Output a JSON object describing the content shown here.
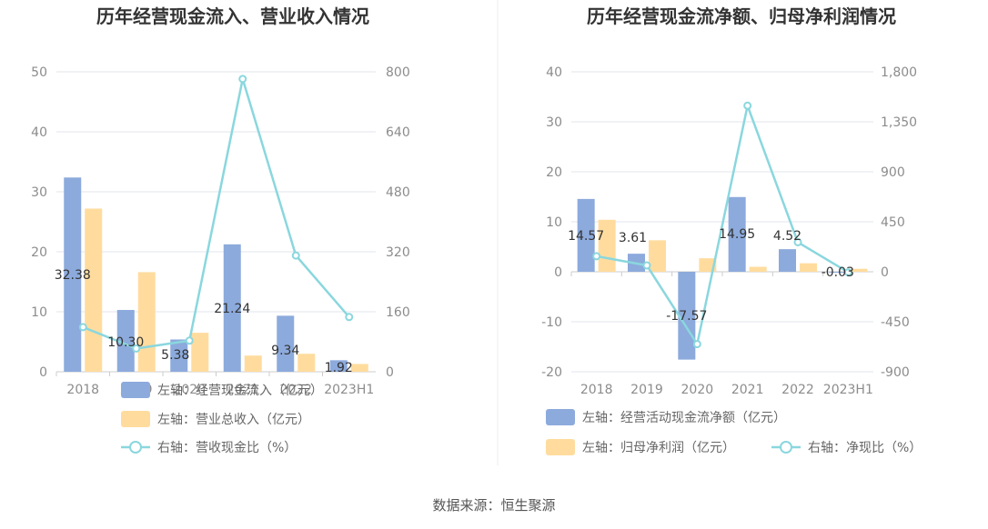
{
  "colors": {
    "bar_primary": "#8caadc",
    "bar_secondary": "#ffdc9e",
    "line": "#8ad7de",
    "grid": "#e3e6ee",
    "divider": "#eeeeee"
  },
  "source": "数据来源：恒生聚源",
  "chart_data": [
    {
      "type": "bar",
      "title": "历年经营现金流入、营业收入情况",
      "categories": [
        "2018",
        "2019",
        "2020",
        "2021",
        "2022",
        "2023H1"
      ],
      "left_axis": {
        "min": 0,
        "max": 50,
        "ticks": [
          "0",
          "10",
          "20",
          "30",
          "40",
          "50"
        ]
      },
      "right_axis": {
        "min": 0,
        "max": 800,
        "ticks": [
          "0",
          "160",
          "320",
          "480",
          "640",
          "800"
        ]
      },
      "series": [
        {
          "name": "左轴：经营现金流入（亿元）",
          "kind": "bar",
          "axis": "left",
          "color_key": "bar_primary",
          "values": [
            32.38,
            10.3,
            5.38,
            21.24,
            9.34,
            1.92
          ],
          "labels": [
            "32.38",
            "10.30",
            "5.38",
            "21.24",
            "9.34",
            "1.92"
          ]
        },
        {
          "name": "左轴：营业总收入（亿元）",
          "kind": "bar",
          "axis": "left",
          "color_key": "bar_secondary",
          "values": [
            27.2,
            16.6,
            6.5,
            2.7,
            3.0,
            1.3
          ]
        },
        {
          "name": "右轴：营收现金比（%）",
          "kind": "line",
          "axis": "right",
          "color_key": "line",
          "values": [
            119,
            62,
            83,
            781,
            310,
            146
          ]
        }
      ],
      "legend": "bottom-stacked",
      "grid": true
    },
    {
      "type": "bar",
      "title": "历年经营现金流净额、归母净利润情况",
      "categories": [
        "2018",
        "2019",
        "2020",
        "2021",
        "2022",
        "2023H1"
      ],
      "left_axis": {
        "min": -20,
        "max": 40,
        "ticks": [
          "-20",
          "-10",
          "0",
          "10",
          "20",
          "30",
          "40"
        ]
      },
      "right_axis": {
        "min": -900,
        "max": 1800,
        "ticks": [
          "-900",
          "-450",
          "0",
          "450",
          "900",
          "1,350",
          "1,800"
        ]
      },
      "series": [
        {
          "name": "左轴：经营活动现金流净额（亿元）",
          "kind": "bar",
          "axis": "left",
          "color_key": "bar_primary",
          "values": [
            14.57,
            3.61,
            -17.57,
            14.95,
            4.52,
            -0.03
          ],
          "labels": [
            "14.57",
            "3.61",
            "-17.57",
            "14.95",
            "4.52",
            "-0.03"
          ]
        },
        {
          "name": "左轴：归母净利润（亿元）",
          "kind": "bar",
          "axis": "left",
          "color_key": "bar_secondary",
          "values": [
            10.4,
            6.3,
            2.7,
            1.0,
            1.7,
            0.6
          ]
        },
        {
          "name": "右轴：净现比（%）",
          "kind": "line",
          "axis": "right",
          "color_key": "line",
          "values": [
            140,
            57,
            -651,
            1495,
            266,
            -5
          ]
        }
      ],
      "legend": "bottom",
      "grid": true
    }
  ]
}
